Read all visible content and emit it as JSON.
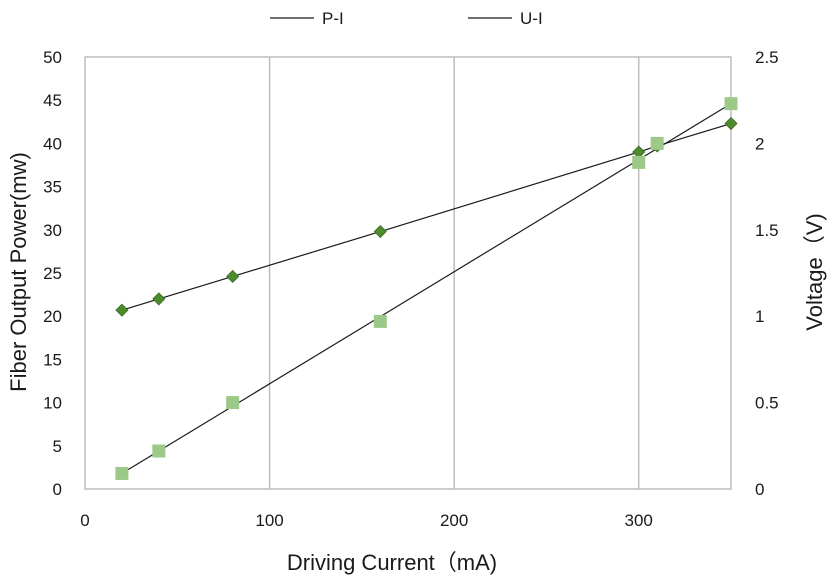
{
  "chart_data": {
    "type": "scatter",
    "xlabel": "Driving Current（mA)",
    "ylabel_left": "Fiber Output Power(mw)",
    "ylabel_right": "Voltage（V)",
    "xlim": [
      0,
      350
    ],
    "ylim_left": [
      0,
      50
    ],
    "ylim_right": [
      0,
      2.5
    ],
    "x_ticks": [
      0,
      100,
      200,
      300
    ],
    "y_left_ticks": [
      0,
      5,
      10,
      15,
      20,
      25,
      30,
      35,
      40,
      45,
      50
    ],
    "y_right_ticks": [
      "0",
      "0.5",
      "1",
      "1.5",
      "2",
      "2.5"
    ],
    "grid": "vertical-only",
    "legend_position": "top",
    "series": [
      {
        "name": "P-I",
        "axis": "left",
        "marker": "diamond",
        "color": "#4e8a2e",
        "x": [
          20,
          40,
          80,
          160,
          300,
          310,
          350
        ],
        "y": [
          20.7,
          22.0,
          24.6,
          29.8,
          39.0,
          39.7,
          42.3
        ]
      },
      {
        "name": "U-I",
        "axis": "right",
        "marker": "square",
        "color": "#9cc987",
        "x": [
          20,
          40,
          80,
          160,
          300,
          310,
          350
        ],
        "y": [
          0.09,
          0.22,
          0.5,
          0.97,
          1.89,
          2.0,
          2.23
        ]
      }
    ]
  }
}
